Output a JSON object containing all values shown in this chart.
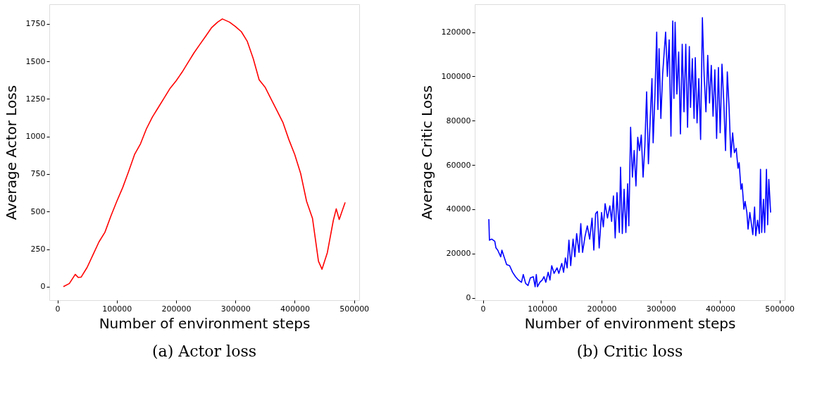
{
  "chart_data": [
    {
      "type": "line",
      "title": "(a) Actor loss",
      "xlabel": "Number of environment steps",
      "ylabel": "Average Actor Loss",
      "x": [
        10000,
        20000,
        30000,
        35000,
        40000,
        50000,
        60000,
        70000,
        80000,
        90000,
        100000,
        110000,
        120000,
        130000,
        140000,
        150000,
        160000,
        170000,
        180000,
        190000,
        200000,
        210000,
        220000,
        230000,
        240000,
        250000,
        260000,
        270000,
        278000,
        290000,
        300000,
        310000,
        320000,
        330000,
        340000,
        350000,
        360000,
        370000,
        380000,
        390000,
        400000,
        410000,
        420000,
        430000,
        440000,
        446000,
        455000,
        465000,
        470000,
        475000,
        480000,
        485000
      ],
      "series": [
        {
          "color": "#ff0000",
          "values": [
            0,
            21,
            82,
            61,
            64,
            128,
            213,
            298,
            362,
            469,
            568,
            660,
            767,
            880,
            951,
            1051,
            1129,
            1193,
            1257,
            1321,
            1370,
            1427,
            1491,
            1555,
            1612,
            1668,
            1725,
            1761,
            1782,
            1761,
            1732,
            1697,
            1633,
            1519,
            1377,
            1328,
            1250,
            1172,
            1094,
            980,
            880,
            753,
            568,
            454,
            170,
            116,
            227,
            440,
            518,
            447,
            504,
            561
          ]
        }
      ],
      "xlim": [
        -13750,
        508750
      ],
      "ylim": [
        -90,
        1880
      ],
      "xticks": [
        0,
        100000,
        200000,
        300000,
        400000,
        500000
      ],
      "yticks": [
        0,
        250,
        500,
        750,
        1000,
        1250,
        1500,
        1750
      ],
      "grid": false,
      "line_style": "solid"
    },
    {
      "type": "line",
      "title": "(b) Critic loss",
      "xlabel": "Number of environment steps",
      "ylabel": "Average Critic Loss",
      "x": [
        10000,
        11000,
        15000,
        20000,
        22000,
        25000,
        30000,
        32000,
        35000,
        40000,
        45000,
        50000,
        55000,
        60000,
        65000,
        68000,
        72000,
        76000,
        80000,
        85000,
        88000,
        90000,
        92000,
        96000,
        100000,
        103000,
        106000,
        110000,
        113000,
        116000,
        120000,
        125000,
        128000,
        133000,
        136000,
        139000,
        142000,
        145000,
        148000,
        152000,
        155000,
        158000,
        162000,
        165000,
        168000,
        172000,
        176000,
        180000,
        184000,
        187000,
        190000,
        193000,
        196000,
        200000,
        203000,
        206000,
        210000,
        214000,
        217000,
        220000,
        223000,
        226000,
        230000,
        232000,
        235000,
        238000,
        241000,
        244000,
        246000,
        249000,
        252000,
        255000,
        258000,
        261000,
        264000,
        267000,
        270000,
        273000,
        276000,
        279000,
        282000,
        285000,
        287000,
        290000,
        293000,
        295000,
        297000,
        300000,
        303000,
        306000,
        308000,
        311000,
        314000,
        317000,
        320000,
        322000,
        324000,
        327000,
        330000,
        333000,
        336000,
        339000,
        342000,
        345000,
        348000,
        350000,
        353000,
        356000,
        358000,
        361000,
        364000,
        367000,
        370000,
        373000,
        376000,
        379000,
        382000,
        385000,
        388000,
        391000,
        394000,
        397000,
        400000,
        403000,
        406000,
        409000,
        412000,
        415000,
        418000,
        421000,
        424000,
        427000,
        430000,
        432000,
        435000,
        437000,
        440000,
        442000,
        445000,
        447000,
        450000,
        452000,
        455000,
        458000,
        460000,
        463000,
        466000,
        468000,
        470000,
        473000,
        475000,
        478000,
        480000,
        482000,
        485000
      ],
      "series": [
        {
          "color": "#0000ff",
          "values": [
            35500,
            26000,
            26500,
            25500,
            22500,
            21500,
            18500,
            21500,
            19000,
            15000,
            14500,
            11500,
            9500,
            8000,
            7000,
            10500,
            6500,
            5500,
            9000,
            9500,
            5000,
            10500,
            5000,
            7000,
            8000,
            9500,
            7000,
            11500,
            8000,
            14500,
            11000,
            13500,
            11000,
            15500,
            11500,
            18000,
            13500,
            26000,
            14500,
            26500,
            18500,
            29000,
            20500,
            33500,
            20500,
            27500,
            32500,
            26500,
            36000,
            21500,
            38000,
            39000,
            22500,
            38500,
            32000,
            42500,
            36000,
            41500,
            34500,
            46000,
            27000,
            47500,
            29500,
            59000,
            29000,
            49000,
            29500,
            51500,
            32500,
            77000,
            54500,
            66500,
            50500,
            72500,
            66500,
            73500,
            54500,
            68500,
            93000,
            60500,
            80500,
            99000,
            70000,
            91500,
            120000,
            85000,
            112500,
            81000,
            101000,
            112500,
            120000,
            100000,
            116500,
            73000,
            125000,
            90000,
            124500,
            92000,
            111000,
            74000,
            114500,
            84000,
            114500,
            77000,
            113500,
            86000,
            108000,
            81000,
            108500,
            79000,
            99000,
            71500,
            126500,
            100000,
            84000,
            109500,
            88000,
            105000,
            82000,
            103000,
            72000,
            104000,
            74500,
            105500,
            89000,
            66500,
            102000,
            86000,
            63500,
            74500,
            65500,
            67500,
            58500,
            61000,
            49000,
            51500,
            40000,
            43500,
            38500,
            31000,
            38500,
            34500,
            28500,
            41000,
            28000,
            35000,
            29000,
            58000,
            29500,
            44500,
            29500,
            58000,
            33000,
            53500,
            38500
          ]
        }
      ],
      "xlim": [
        -13750,
        508750
      ],
      "ylim": [
        -1100,
        132600
      ],
      "xticks": [
        0,
        100000,
        200000,
        300000,
        400000,
        500000
      ],
      "yticks": [
        0,
        20000,
        40000,
        60000,
        80000,
        100000,
        120000
      ],
      "grid": false,
      "line_style": "solid"
    }
  ]
}
